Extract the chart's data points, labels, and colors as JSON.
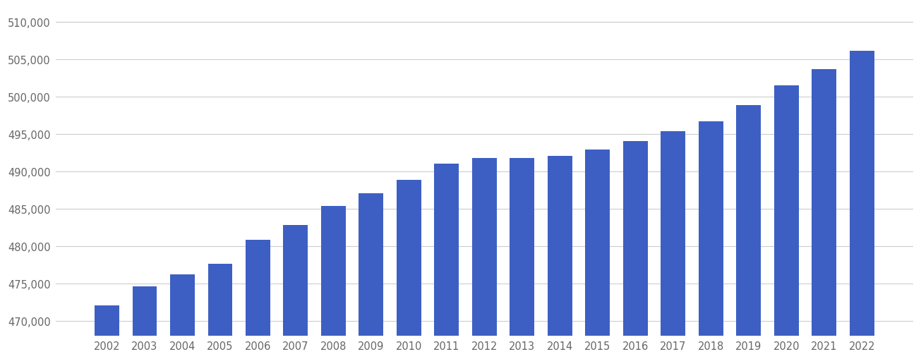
{
  "years": [
    2002,
    2003,
    2004,
    2005,
    2006,
    2007,
    2008,
    2009,
    2010,
    2011,
    2012,
    2013,
    2014,
    2015,
    2016,
    2017,
    2018,
    2019,
    2020,
    2021,
    2022
  ],
  "values": [
    472100,
    474600,
    476200,
    477600,
    480800,
    482800,
    485400,
    487100,
    488900,
    491000,
    491800,
    491800,
    492100,
    492900,
    494100,
    495400,
    496700,
    498900,
    501500,
    503700,
    506200
  ],
  "bar_color": "#3d5fc4",
  "background_color": "#ffffff",
  "grid_color": "#cccccc",
  "tick_color": "#666666",
  "ylim_min": 468000,
  "ylim_max": 512000,
  "bar_baseline": 468000,
  "ytick_values": [
    470000,
    475000,
    480000,
    485000,
    490000,
    495000,
    500000,
    505000,
    510000
  ]
}
